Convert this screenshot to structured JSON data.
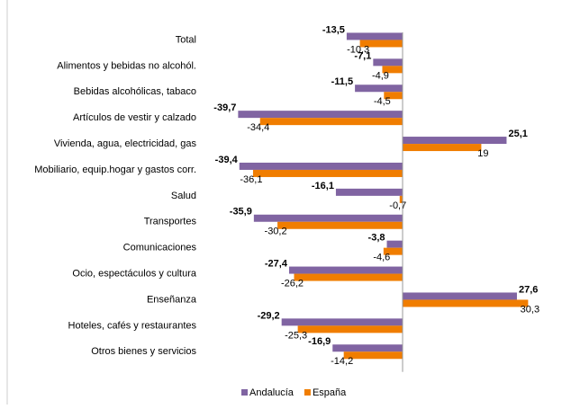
{
  "chart_data": {
    "type": "hbar",
    "categories": [
      "Total",
      "Alimentos y bebidas no alcohól.",
      "Bebidas alcohólicas, tabaco",
      "Artículos de vestir y calzado",
      "Vivienda, agua, electricidad, gas",
      "Mobiliario, equip.hogar y gastos corr.",
      "Salud",
      "Transportes",
      "Comunicaciones",
      "Ocio, espectáculos y cultura",
      "Enseñanza",
      "Hoteles, cafés y restaurantes",
      "Otros bienes y servicios"
    ],
    "series": [
      {
        "name": "Andalucía",
        "color": "#8064a2",
        "values": [
          -13.5,
          -7.1,
          -11.5,
          -39.7,
          25.1,
          -39.4,
          -16.1,
          -35.9,
          -3.8,
          -27.4,
          27.6,
          -29.2,
          -16.9
        ],
        "value_labels": [
          "-13,5",
          "-7,1",
          "-11,5",
          "-39,7",
          "25,1",
          "-39,4",
          "-16,1",
          "-35,9",
          "-3,8",
          "-27,4",
          "27,6",
          "-29,2",
          "-16,9"
        ]
      },
      {
        "name": "España",
        "color": "#f07d00",
        "values": [
          -10.3,
          -4.9,
          -4.5,
          -34.4,
          19,
          -36.1,
          -0.7,
          -30.2,
          -4.6,
          -26.2,
          30.3,
          -25.3,
          -14.2
        ],
        "value_labels": [
          "-10,3",
          "-4,9",
          "-4,5",
          "-34,4",
          "19",
          "-36,1",
          "-0,7",
          "-30,2",
          "-4,6",
          "-26,2",
          "30,3",
          "-25,3",
          "-14,2"
        ]
      }
    ],
    "xlim": [
      -40,
      35
    ],
    "legend": "bottom"
  }
}
